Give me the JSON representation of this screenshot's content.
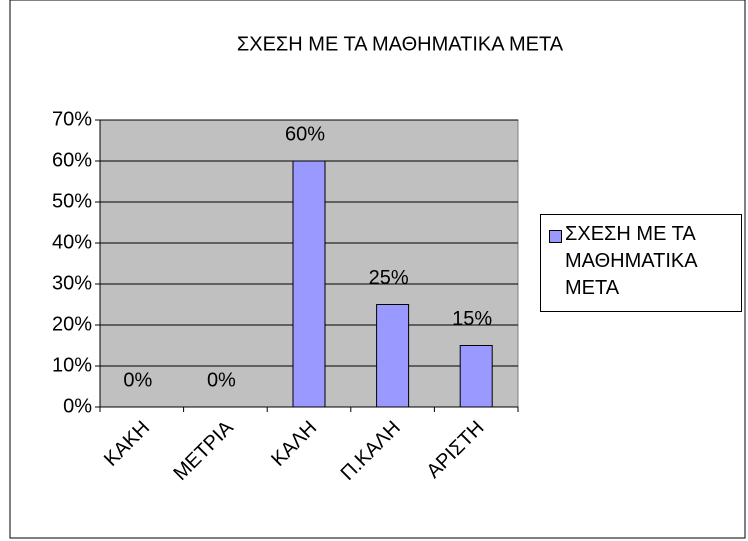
{
  "chart_data": {
    "type": "bar",
    "title": "ΣΧΕΣΗ ΜΕ ΤΑ ΜΑΘΗΜΑΤΙΚΑ ΜΕΤΑ",
    "categories": [
      "ΚΑΚΗ",
      "ΜΕΤΡΙΑ",
      "ΚΑΛΗ",
      "Π.ΚΑΛΗ",
      "ΑΡΙΣΤΗ"
    ],
    "series": [
      {
        "name": "ΣΧΕΣΗ ΜΕ ΤΑ ΜΑΘΗΜΑΤΙΚΑ ΜΕΤΑ",
        "color": "#9999ff",
        "values": [
          0,
          0,
          60,
          25,
          15
        ],
        "value_labels": [
          "0%",
          "0%",
          "60%",
          "25%",
          "15%"
        ]
      }
    ],
    "ylim": [
      0,
      70
    ],
    "yticks": [
      {
        "value": 0,
        "label": "0%"
      },
      {
        "value": 10,
        "label": "10%"
      },
      {
        "value": 20,
        "label": "20%"
      },
      {
        "value": 30,
        "label": "30%"
      },
      {
        "value": 40,
        "label": "40%"
      },
      {
        "value": 50,
        "label": "50%"
      },
      {
        "value": 60,
        "label": "60%"
      },
      {
        "value": 70,
        "label": "70%"
      }
    ],
    "grid": true,
    "legend": "right"
  }
}
